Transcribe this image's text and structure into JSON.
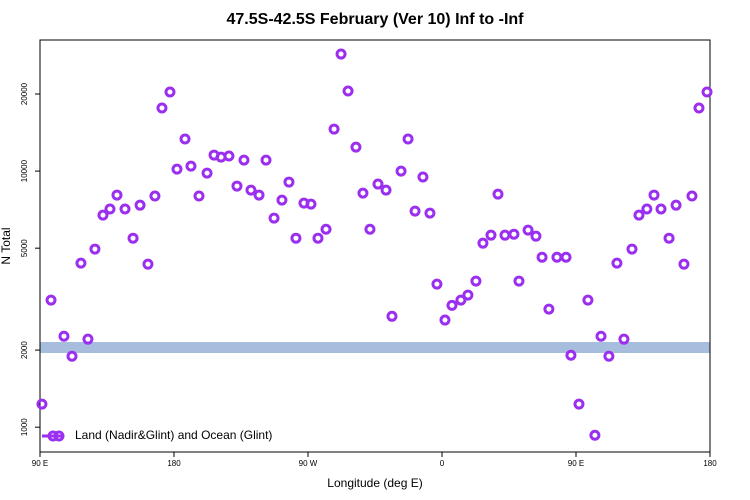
{
  "chart_data": {
    "type": "scatter",
    "title": "47.5S-42.5S February (Ver 10)   Inf to -Inf",
    "x_label": "Longitude (deg E)",
    "y_label": "N Total",
    "xlim": [
      90,
      540
    ],
    "xticks": [
      {
        "value": 90,
        "label": "90 E"
      },
      180,
      {
        "value": 270,
        "label": "90 W"
      },
      {
        "value": 360,
        "label": "0"
      },
      {
        "value": 450,
        "label": "90 E"
      },
      {
        "value": 540,
        "label": "180"
      }
    ],
    "ylim": [
      800,
      32500
    ],
    "log_y": true,
    "yticks": [
      1000,
      2000,
      5000,
      10000,
      20000
    ],
    "legend": "bottom-left",
    "series": [
      {
        "name": "Land (Nadir&Glint) and Ocean (Glint)",
        "color": "#9b2ff0",
        "x": [
          91.3,
          97.4,
          106.1,
          111.5,
          117.5,
          122.2,
          126.9,
          132.3,
          137,
          141.7,
          147.1,
          152.5,
          157.2,
          162.5,
          167.2,
          171.9,
          177.3,
          182,
          187.4,
          191.4,
          196.8,
          202.2,
          206.9,
          211.6,
          216.9,
          222.3,
          227,
          231.7,
          237.1,
          241.8,
          247.2,
          252.5,
          257.2,
          261.9,
          267.3,
          272,
          276.7,
          282.1,
          287.5,
          292.2,
          296.9,
          302.2,
          306.9,
          311.6,
          317,
          322.4,
          326.4,
          332.5,
          337.2,
          341.9,
          347.2,
          351.9,
          356.6,
          362,
          366.7,
          372.7,
          377.4,
          382.8,
          387.5,
          392.9,
          397.6,
          402.3,
          408.3,
          411.7,
          417.8,
          423.1,
          427.2,
          431.8,
          437.2,
          443.3,
          446.6,
          452,
          458,
          462.7,
          466.8,
          472.1,
          477.5,
          482.2,
          487.6,
          492.3,
          497.6,
          502.4,
          507.1,
          512.5,
          517.2,
          522.5,
          527.9,
          532.6,
          538
        ],
        "values": [
          1230,
          3135,
          2266,
          1893,
          4370,
          2206,
          4960,
          6730,
          7110,
          8060,
          7110,
          5470,
          7360,
          4330,
          7990,
          17630,
          20360,
          10180,
          13340,
          10460,
          7990,
          9820,
          11550,
          11340,
          11450,
          8740,
          11040,
          8430,
          8060,
          11040,
          6550,
          7700,
          9060,
          5470,
          7500,
          7430,
          5470,
          5930,
          14590,
          28640,
          20540,
          12400,
          8200,
          5930,
          8900,
          8430,
          2710,
          10000,
          13340,
          6980,
          9480,
          6850,
          3620,
          2620,
          2990,
          3135,
          3280,
          3720,
          5230,
          5620,
          8130,
          5620,
          5670,
          3720,
          5880,
          5570,
          4610,
          2890,
          4610,
          4610,
          1910,
          1230,
          3135,
          930,
          2266,
          1893,
          4370,
          2206,
          4960,
          6730,
          7110,
          8060,
          7110,
          5470,
          7360,
          4330,
          7990,
          17630,
          20360
        ]
      }
    ]
  }
}
